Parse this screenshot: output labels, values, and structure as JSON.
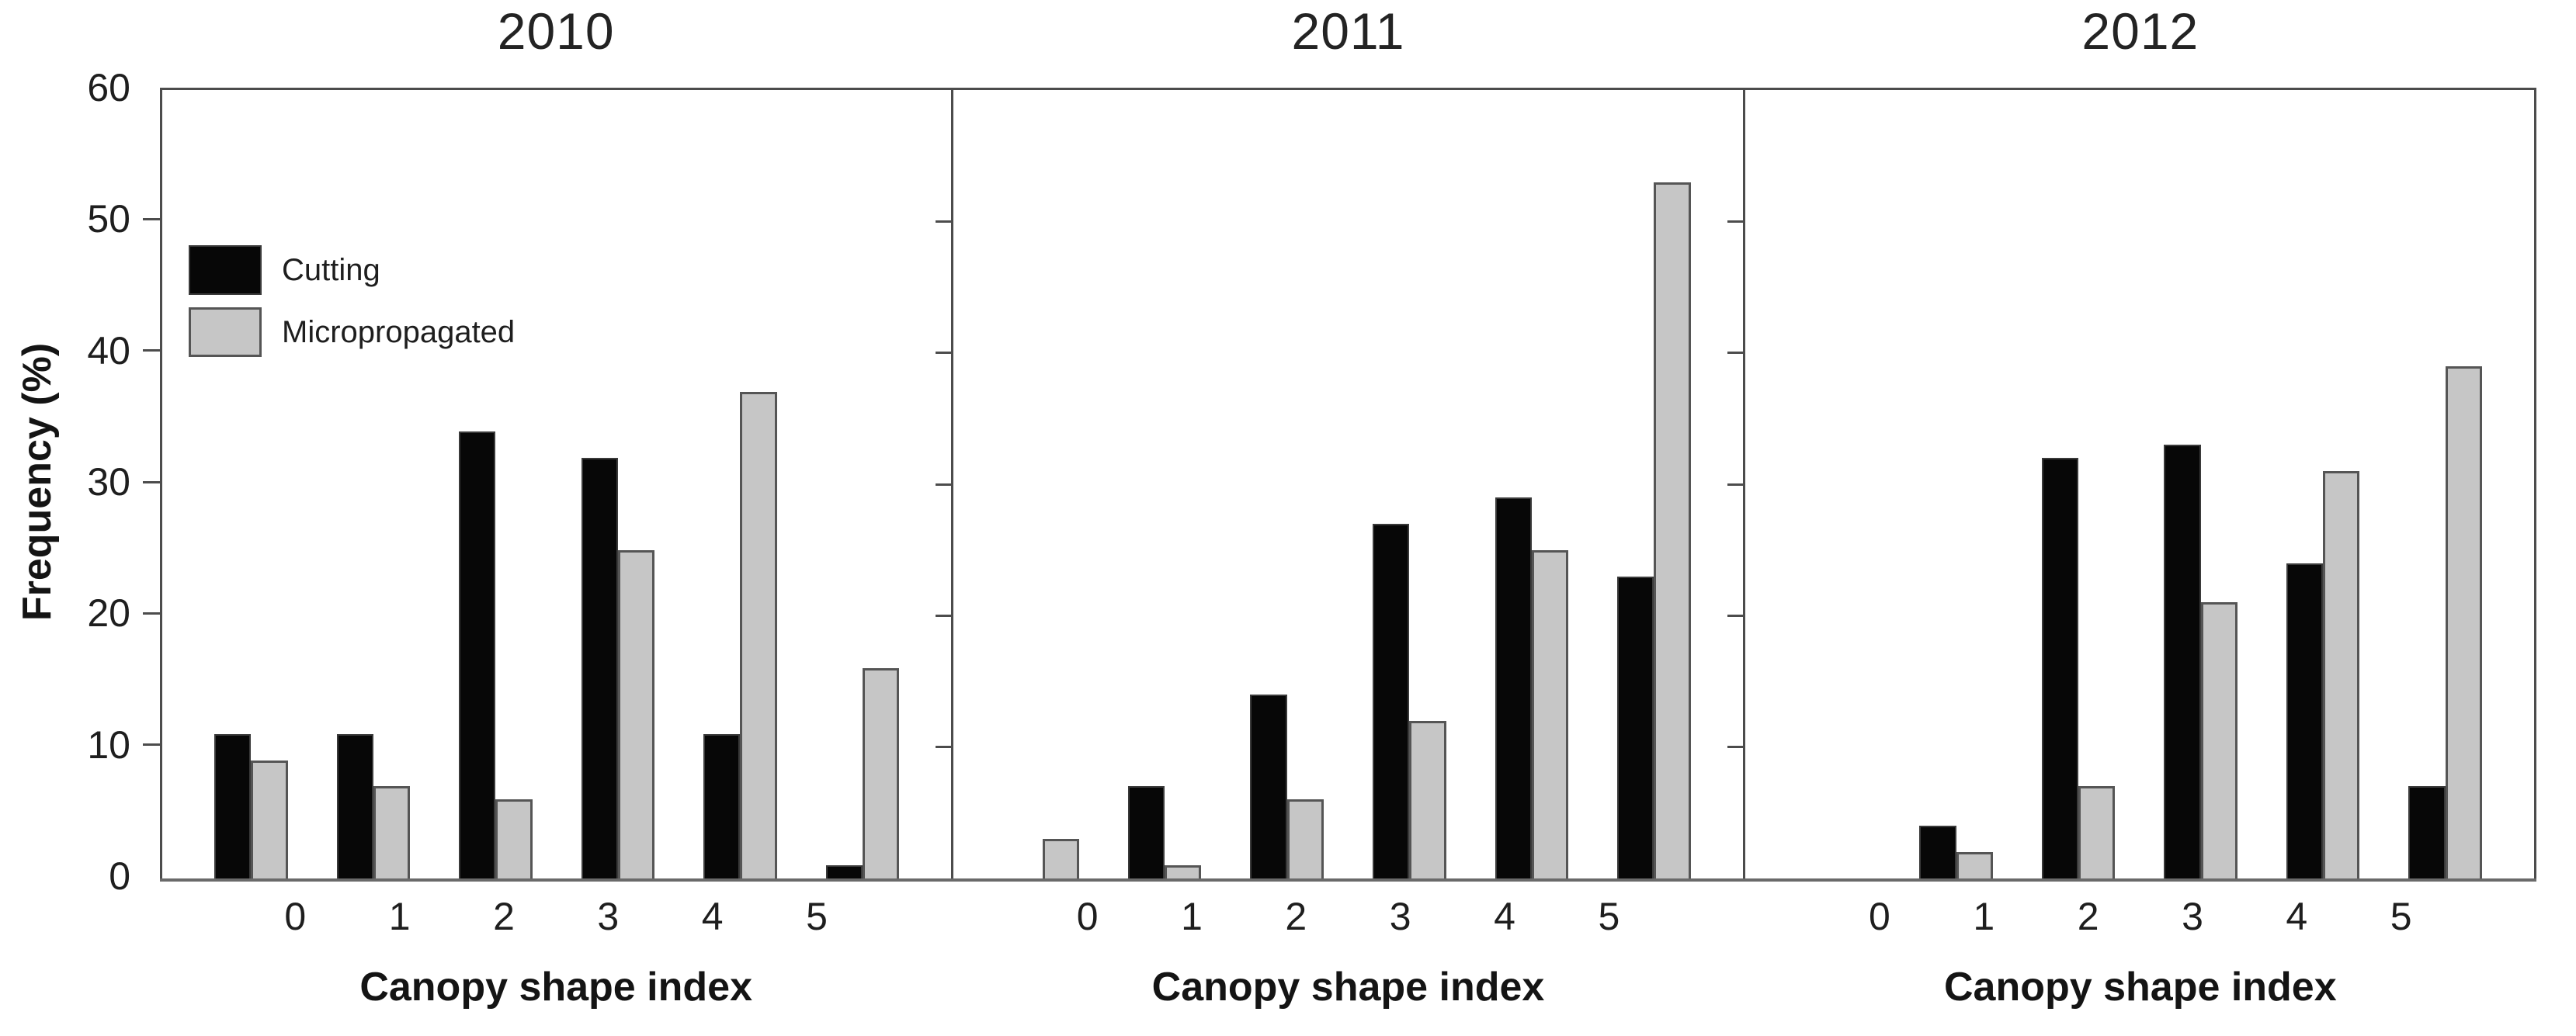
{
  "figure": {
    "y_axis_label": "Frequency (%)",
    "x_axis_label": "Canopy shape index",
    "y_ticks": [
      0,
      10,
      20,
      30,
      40,
      50,
      60
    ],
    "legend": [
      {
        "label": "Cutting",
        "color": "#070707"
      },
      {
        "label": "Micropropagated",
        "color": "#c6c6c6"
      }
    ]
  },
  "colors": {
    "cutting_bar": "#070707",
    "micropropagated_bar": "#c6c6c6",
    "bar_border": "#555555",
    "axis": "#4c4c4c"
  },
  "chart_data": [
    {
      "type": "bar",
      "title": "2010",
      "categories": [
        "0",
        "1",
        "2",
        "3",
        "4",
        "5"
      ],
      "xlabel": "Canopy shape index",
      "ylabel": "Frequency (%)",
      "ylim": [
        0,
        60
      ],
      "grid": false,
      "legend_position": "upper-left-first-panel",
      "series": [
        {
          "name": "Cutting",
          "values": [
            11,
            11,
            34,
            32,
            11,
            1
          ]
        },
        {
          "name": "Micropropagated",
          "values": [
            9,
            7,
            6,
            25,
            37,
            16
          ]
        }
      ]
    },
    {
      "type": "bar",
      "title": "2011",
      "categories": [
        "0",
        "1",
        "2",
        "3",
        "4",
        "5"
      ],
      "xlabel": "Canopy shape index",
      "ylabel": "Frequency (%)",
      "ylim": [
        0,
        60
      ],
      "grid": false,
      "series": [
        {
          "name": "Cutting",
          "values": [
            0,
            7,
            14,
            27,
            29,
            23
          ]
        },
        {
          "name": "Micropropagated",
          "values": [
            3,
            1,
            6,
            12,
            25,
            53
          ]
        }
      ]
    },
    {
      "type": "bar",
      "title": "2012",
      "categories": [
        "0",
        "1",
        "2",
        "3",
        "4",
        "5"
      ],
      "xlabel": "Canopy shape index",
      "ylabel": "Frequency (%)",
      "ylim": [
        0,
        60
      ],
      "grid": false,
      "series": [
        {
          "name": "Cutting",
          "values": [
            0,
            4,
            32,
            33,
            24,
            7
          ]
        },
        {
          "name": "Micropropagated",
          "values": [
            0,
            2,
            7,
            21,
            31,
            39
          ]
        }
      ]
    }
  ]
}
